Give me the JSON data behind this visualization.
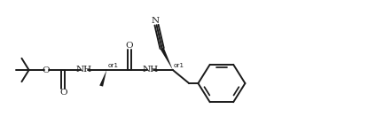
{
  "background_color": "#ffffff",
  "line_color": "#1a1a1a",
  "line_width": 1.4,
  "font_size": 7.5,
  "small_font_size": 5.2,
  "figsize": [
    4.24,
    1.58
  ],
  "dpi": 100,
  "xlim": [
    -2,
    102
  ],
  "ylim": [
    0,
    42
  ]
}
